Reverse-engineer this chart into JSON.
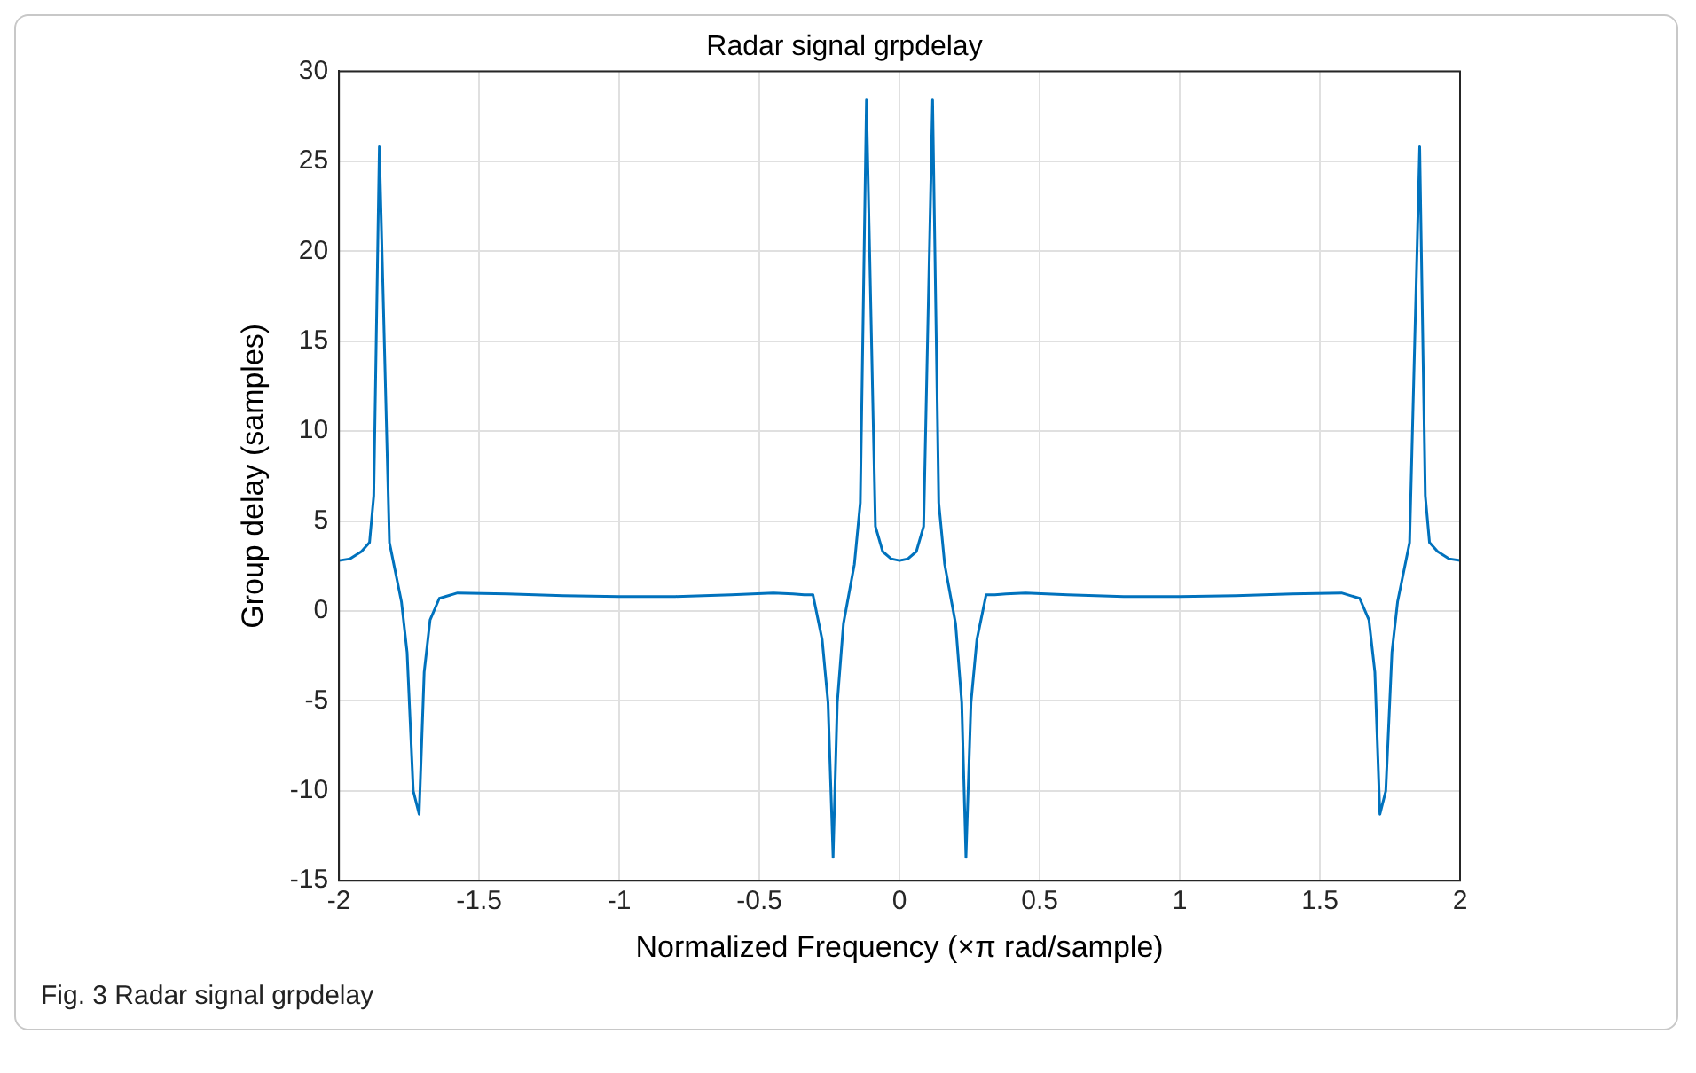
{
  "chart_data": {
    "type": "line",
    "title": "Radar signal grpdelay",
    "xlabel": "Normalized Frequency (×π rad/sample)",
    "ylabel": "Group delay (samples)",
    "annotations": [
      "Fig. 3 Radar signal grpdelay"
    ],
    "x": [
      -2,
      -1.96,
      -1.92,
      -1.891,
      -1.876,
      -1.856,
      -1.82,
      -1.777,
      -1.757,
      -1.735,
      -1.714,
      -1.696,
      -1.675,
      -1.642,
      -1.577,
      -1.4,
      -1.2,
      -1,
      -0.8,
      -0.6,
      -0.45,
      -0.38,
      -0.34,
      -0.309,
      -0.276,
      -0.255,
      -0.237,
      -0.222,
      -0.2,
      -0.161,
      -0.14,
      -0.118,
      -0.086,
      -0.06,
      -0.03,
      0,
      0.03,
      0.06,
      0.086,
      0.118,
      0.14,
      0.161,
      0.2,
      0.222,
      0.237,
      0.255,
      0.276,
      0.309,
      0.34,
      0.38,
      0.45,
      0.6,
      0.8,
      1,
      1.2,
      1.4,
      1.577,
      1.642,
      1.675,
      1.696,
      1.714,
      1.735,
      1.757,
      1.777,
      1.82,
      1.856,
      1.876,
      1.891,
      1.92,
      1.96,
      2
    ],
    "series": [
      {
        "color": "#0072bd",
        "values": [
          2.8,
          2.9,
          3.3,
          3.8,
          6.4,
          25.8,
          3.8,
          0.5,
          -2.3,
          -10,
          -11.3,
          -3.4,
          -0.5,
          0.7,
          1,
          0.95,
          0.85,
          0.8,
          0.8,
          0.9,
          1,
          0.95,
          0.9,
          0.9,
          -1.6,
          -5.1,
          -13.7,
          -5.1,
          -0.7,
          2.6,
          6,
          28.4,
          4.7,
          3.3,
          2.9,
          2.8,
          2.9,
          3.3,
          4.7,
          28.4,
          6,
          2.6,
          -0.7,
          -5.1,
          -13.7,
          -5.1,
          -1.6,
          0.9,
          0.9,
          0.95,
          1,
          0.9,
          0.8,
          0.8,
          0.85,
          0.95,
          1,
          0.7,
          -0.5,
          -3.4,
          -11.3,
          -10,
          -2.3,
          0.5,
          3.8,
          25.8,
          6.4,
          3.8,
          3.3,
          2.9,
          2.8
        ]
      }
    ],
    "xlim": [
      -2,
      2
    ],
    "xticks": [
      -2,
      -1.5,
      -1,
      -0.5,
      0,
      0.5,
      1,
      1.5,
      2
    ],
    "ylim": [
      -15,
      30
    ],
    "yticks": [
      -15,
      -10,
      -5,
      0,
      5,
      10,
      15,
      20,
      25,
      30
    ],
    "grid": true,
    "legend": false,
    "marker": "none",
    "line_style": "solid"
  }
}
